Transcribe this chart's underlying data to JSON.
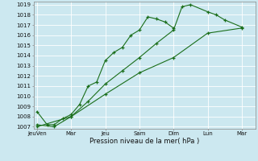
{
  "xlabel": "Pression niveau de la mer( hPa )",
  "bg_color": "#cce8f0",
  "grid_color": "#ffffff",
  "line_color": "#1a6e1a",
  "ylim": [
    1006.8,
    1019.3
  ],
  "yticks": [
    1007,
    1008,
    1009,
    1010,
    1011,
    1012,
    1013,
    1014,
    1015,
    1016,
    1017,
    1018,
    1019
  ],
  "xtick_labels": [
    "JeuVen",
    "Mar",
    "Jeu",
    "Sam",
    "Dim",
    "Lun",
    "Mar"
  ],
  "xtick_positions": [
    0,
    2,
    4,
    6,
    8,
    10,
    12
  ],
  "xlim": [
    -0.2,
    12.8
  ],
  "series": [
    {
      "x": [
        0.0,
        0.6,
        1.0,
        1.5,
        2.0,
        2.5,
        3.0,
        3.5,
        4.0,
        4.5,
        5.0,
        5.5,
        6.0,
        6.5,
        7.0,
        7.5,
        8.0
      ],
      "y": [
        1008.5,
        1007.2,
        1007.2,
        1007.8,
        1008.2,
        1009.2,
        1011.0,
        1011.4,
        1013.5,
        1014.3,
        1014.8,
        1016.0,
        1016.5,
        1017.8,
        1017.6,
        1017.3,
        1016.7
      ]
    },
    {
      "x": [
        0.0,
        1.0,
        2.0,
        3.0,
        4.0,
        5.0,
        6.0,
        7.0,
        8.0,
        8.5,
        9.0,
        10.0,
        10.5,
        11.0,
        12.0
      ],
      "y": [
        1007.2,
        1007.0,
        1008.0,
        1009.5,
        1011.2,
        1012.5,
        1013.8,
        1015.2,
        1016.5,
        1018.8,
        1019.0,
        1018.3,
        1018.0,
        1017.5,
        1016.8
      ]
    },
    {
      "x": [
        0.0,
        2.0,
        4.0,
        6.0,
        8.0,
        10.0,
        12.0
      ],
      "y": [
        1007.0,
        1008.0,
        1010.2,
        1012.3,
        1013.8,
        1016.2,
        1016.7
      ]
    }
  ]
}
